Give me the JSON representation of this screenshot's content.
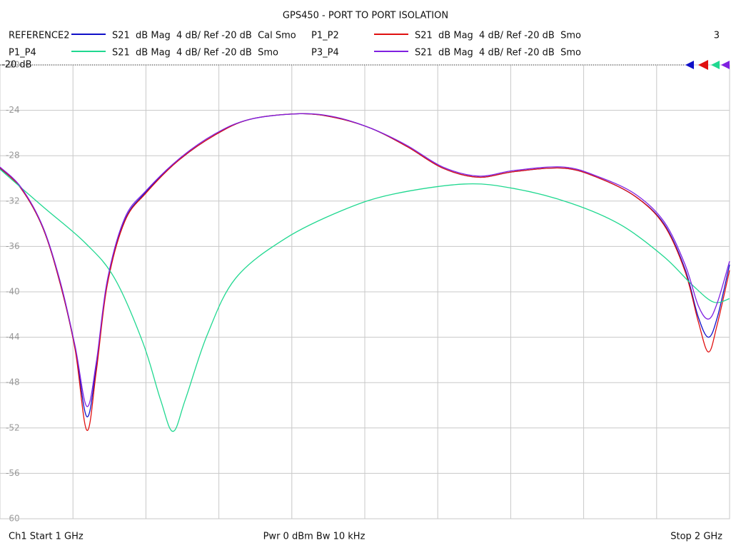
{
  "chart_data": {
    "type": "line",
    "title": "GPS450 - PORT TO PORT ISOLATION",
    "marker_count": "3",
    "ref_label": "-20 dB",
    "footer": {
      "start": "Ch1  Start  1 GHz",
      "power": "Pwr  0 dBm  Bw  10 kHz",
      "stop": "Stop  2 GHz"
    },
    "xlim": [
      1,
      2
    ],
    "xticks": [
      1.1,
      1.2,
      1.3,
      1.4,
      1.5,
      1.6,
      1.7,
      1.8,
      1.9
    ],
    "ylim": [
      -60,
      -20
    ],
    "yticks": [
      -20,
      -24,
      -28,
      -32,
      -36,
      -40,
      -44,
      -48,
      -52,
      -56,
      -60
    ],
    "grid": true,
    "series": [
      {
        "name": "REFERENCE2",
        "description": "S21  dB Mag  4 dB/ Ref -20 dB  Cal Smo",
        "color": "#1010c8",
        "x": [
          1.0,
          1.029,
          1.059,
          1.083,
          1.103,
          1.119,
          1.132,
          1.147,
          1.171,
          1.2,
          1.245,
          1.294,
          1.342,
          1.411,
          1.46,
          1.509,
          1.558,
          1.607,
          1.656,
          1.705,
          1.773,
          1.822,
          1.871,
          1.91,
          1.939,
          1.957,
          1.971,
          1.983,
          2.0
        ],
        "values": [
          -29.1,
          -30.9,
          -34.4,
          -39.4,
          -45.0,
          -51.0,
          -46.6,
          -39.2,
          -33.7,
          -31.2,
          -28.4,
          -26.2,
          -24.8,
          -24.3,
          -24.65,
          -25.6,
          -27.2,
          -29.1,
          -29.9,
          -29.4,
          -29.1,
          -30.0,
          -31.6,
          -34.0,
          -38.0,
          -42.2,
          -44.0,
          -42.3,
          -37.6
        ]
      },
      {
        "name": "P1_P2",
        "description": "S21  dB Mag  4 dB/ Ref -20 dB  Smo",
        "color": "#e01010",
        "x": [
          1.0,
          1.029,
          1.059,
          1.083,
          1.103,
          1.119,
          1.132,
          1.147,
          1.171,
          1.2,
          1.245,
          1.294,
          1.342,
          1.411,
          1.46,
          1.509,
          1.558,
          1.607,
          1.656,
          1.705,
          1.773,
          1.822,
          1.871,
          1.91,
          1.939,
          1.957,
          1.971,
          1.983,
          2.0
        ],
        "values": [
          -29.06,
          -30.9,
          -34.4,
          -39.4,
          -45.1,
          -52.2,
          -47.0,
          -39.4,
          -33.8,
          -31.3,
          -28.4,
          -26.2,
          -24.8,
          -24.3,
          -24.65,
          -25.6,
          -27.2,
          -29.1,
          -29.9,
          -29.4,
          -29.1,
          -30.0,
          -31.6,
          -34.1,
          -38.2,
          -42.6,
          -45.3,
          -42.9,
          -38.1
        ]
      },
      {
        "name": "P1_P4",
        "description": "S21  dB Mag  4 dB/ Ref -20 dB  Smo",
        "color": "#20d890",
        "x": [
          1.0,
          1.059,
          1.117,
          1.157,
          1.196,
          1.22,
          1.237,
          1.254,
          1.284,
          1.323,
          1.391,
          1.47,
          1.538,
          1.636,
          1.705,
          1.783,
          1.851,
          1.91,
          1.949,
          1.978,
          2.0
        ],
        "values": [
          -29.2,
          -32.5,
          -35.7,
          -38.8,
          -44.5,
          -49.5,
          -52.3,
          -49.5,
          -43.8,
          -38.8,
          -35.3,
          -32.8,
          -31.4,
          -30.5,
          -30.9,
          -32.2,
          -34.1,
          -36.9,
          -39.4,
          -40.9,
          -40.6
        ]
      },
      {
        "name": "P3_P4",
        "description": "S21  dB Mag  4 dB/ Ref -20 dB  Smo",
        "color": "#8020e0",
        "x": [
          1.0,
          1.029,
          1.059,
          1.083,
          1.103,
          1.119,
          1.132,
          1.147,
          1.171,
          1.2,
          1.245,
          1.294,
          1.342,
          1.411,
          1.46,
          1.509,
          1.558,
          1.607,
          1.656,
          1.705,
          1.773,
          1.822,
          1.871,
          1.91,
          1.939,
          1.957,
          1.971,
          1.983,
          2.0
        ],
        "values": [
          -29.0,
          -30.8,
          -34.3,
          -39.2,
          -44.8,
          -50.1,
          -46.2,
          -39.0,
          -33.5,
          -31.1,
          -28.3,
          -26.1,
          -24.8,
          -24.3,
          -24.6,
          -25.6,
          -27.1,
          -29.0,
          -29.8,
          -29.3,
          -29.0,
          -29.9,
          -31.4,
          -33.8,
          -37.6,
          -41.2,
          -42.4,
          -41.0,
          -37.3
        ]
      }
    ]
  }
}
